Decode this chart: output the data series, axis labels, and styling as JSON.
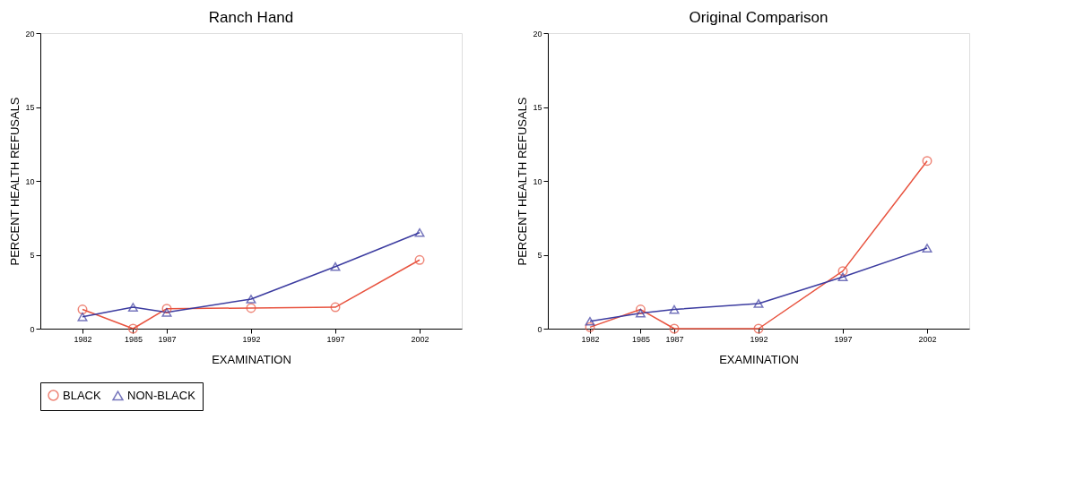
{
  "chart_data": [
    {
      "type": "line",
      "title": "Ranch Hand",
      "xlabel": "EXAMINATION",
      "ylabel": "PERCENT HEALTH REFUSALS",
      "x": [
        1982,
        1985,
        1987,
        1992,
        1997,
        2002
      ],
      "xlim": [
        1979.5,
        2004.5
      ],
      "xticks": [
        1982,
        1985,
        1987,
        1992,
        1997,
        2002
      ],
      "ylim": [
        0,
        20
      ],
      "yticks": [
        0,
        5,
        10,
        15,
        20
      ],
      "grid": false,
      "legend": "bottom",
      "series": [
        {
          "name": "BLACK",
          "color": "#e8533f",
          "marker": "circle",
          "values": [
            1.3,
            0,
            1.35,
            1.4,
            1.45,
            4.65
          ]
        },
        {
          "name": "NON-BLACK",
          "color": "#3c3ca0",
          "marker": "triangle",
          "values": [
            0.8,
            1.45,
            1.1,
            2.0,
            4.2,
            6.5
          ]
        }
      ]
    },
    {
      "type": "line",
      "title": "Original Comparison",
      "xlabel": "EXAMINATION",
      "ylabel": "PERCENT HEALTH REFUSALS",
      "x": [
        1982,
        1985,
        1987,
        1992,
        1997,
        2002
      ],
      "xlim": [
        1979.5,
        2004.5
      ],
      "xticks": [
        1982,
        1985,
        1987,
        1992,
        1997,
        2002
      ],
      "ylim": [
        0,
        20
      ],
      "yticks": [
        0,
        5,
        10,
        15,
        20
      ],
      "grid": false,
      "legend": "bottom",
      "series": [
        {
          "name": "BLACK",
          "color": "#e8533f",
          "marker": "circle",
          "values": [
            0.1,
            1.3,
            0,
            0,
            3.9,
            11.35
          ]
        },
        {
          "name": "NON-BLACK",
          "color": "#3c3ca0",
          "marker": "triangle",
          "values": [
            0.5,
            1.05,
            1.3,
            1.7,
            3.5,
            5.45
          ]
        }
      ]
    }
  ]
}
